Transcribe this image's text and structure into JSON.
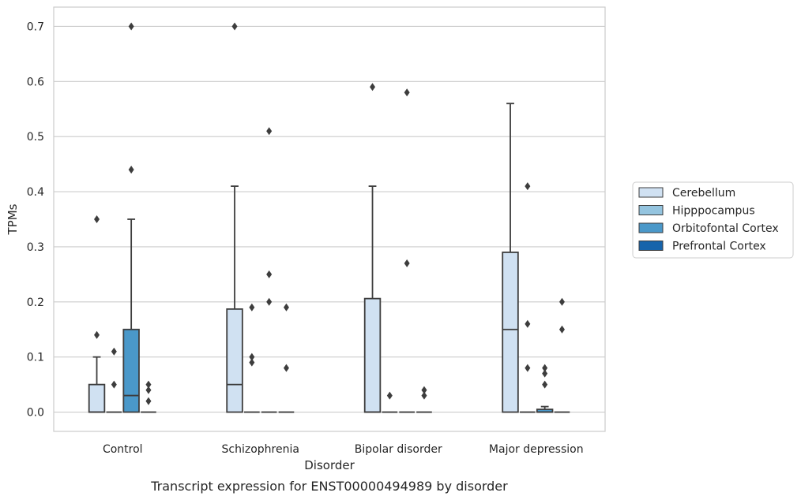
{
  "chart_data": {
    "type": "box",
    "caption": "Transcript expression for ENST00000494989 by disorder",
    "xlabel": "Disorder",
    "ylabel": "TPMs",
    "ylim": [
      -0.035,
      0.735
    ],
    "yticks": [
      0.0,
      0.1,
      0.2,
      0.3,
      0.4,
      0.5,
      0.6,
      0.7
    ],
    "ytick_labels": [
      "0.0",
      "0.1",
      "0.2",
      "0.3",
      "0.4",
      "0.5",
      "0.6",
      "0.7"
    ],
    "grid": "horizontal",
    "legend_position": "right",
    "categories": [
      "Control",
      "Schizophrenia",
      "Bipolar disorder",
      "Major depression"
    ],
    "series": [
      {
        "name": "Cerebellum",
        "color": "#d0e1f2",
        "boxes": [
          {
            "q1": 0.0,
            "median": 0.0,
            "q3": 0.05,
            "whisker_low": 0.0,
            "whisker_high": 0.1,
            "outliers": [
              0.35,
              0.14
            ]
          },
          {
            "q1": 0.0,
            "median": 0.05,
            "q3": 0.187,
            "whisker_low": 0.0,
            "whisker_high": 0.41,
            "outliers": [
              0.7
            ]
          },
          {
            "q1": 0.0,
            "median": 0.0,
            "q3": 0.206,
            "whisker_low": 0.0,
            "whisker_high": 0.41,
            "outliers": [
              0.59
            ]
          },
          {
            "q1": 0.0,
            "median": 0.15,
            "q3": 0.29,
            "whisker_low": 0.0,
            "whisker_high": 0.56,
            "outliers": []
          }
        ]
      },
      {
        "name": "Hipppocampus",
        "color": "#94c4df",
        "boxes": [
          {
            "q1": 0.0,
            "median": 0.0,
            "q3": 0.0,
            "whisker_low": 0.0,
            "whisker_high": 0.0,
            "outliers": [
              0.11,
              0.05
            ]
          },
          {
            "q1": 0.0,
            "median": 0.0,
            "q3": 0.0,
            "whisker_low": 0.0,
            "whisker_high": 0.0,
            "outliers": [
              0.19,
              0.1,
              0.09
            ]
          },
          {
            "q1": 0.0,
            "median": 0.0,
            "q3": 0.0,
            "whisker_low": 0.0,
            "whisker_high": 0.0,
            "outliers": [
              0.03
            ]
          },
          {
            "q1": 0.0,
            "median": 0.0,
            "q3": 0.0,
            "whisker_low": 0.0,
            "whisker_high": 0.0,
            "outliers": [
              0.41,
              0.16,
              0.08
            ]
          }
        ]
      },
      {
        "name": "Orbitofontal Cortex",
        "color": "#4a98c9",
        "boxes": [
          {
            "q1": 0.0,
            "median": 0.03,
            "q3": 0.15,
            "whisker_low": 0.0,
            "whisker_high": 0.35,
            "outliers": [
              0.7,
              0.44
            ]
          },
          {
            "q1": 0.0,
            "median": 0.0,
            "q3": 0.0,
            "whisker_low": 0.0,
            "whisker_high": 0.0,
            "outliers": [
              0.51,
              0.25,
              0.2
            ]
          },
          {
            "q1": 0.0,
            "median": 0.0,
            "q3": 0.0,
            "whisker_low": 0.0,
            "whisker_high": 0.0,
            "outliers": [
              0.58,
              0.27
            ]
          },
          {
            "q1": 0.0,
            "median": 0.0,
            "q3": 0.005,
            "whisker_low": 0.0,
            "whisker_high": 0.01,
            "outliers": [
              0.08,
              0.07,
              0.05
            ]
          }
        ]
      },
      {
        "name": "Prefrontal Cortex",
        "color": "#1764ab",
        "boxes": [
          {
            "q1": 0.0,
            "median": 0.0,
            "q3": 0.0,
            "whisker_low": 0.0,
            "whisker_high": 0.0,
            "outliers": [
              0.05,
              0.04,
              0.02
            ]
          },
          {
            "q1": 0.0,
            "median": 0.0,
            "q3": 0.0,
            "whisker_low": 0.0,
            "whisker_high": 0.0,
            "outliers": [
              0.19,
              0.08
            ]
          },
          {
            "q1": 0.0,
            "median": 0.0,
            "q3": 0.0,
            "whisker_low": 0.0,
            "whisker_high": 0.0,
            "outliers": [
              0.04,
              0.03
            ]
          },
          {
            "q1": 0.0,
            "median": 0.0,
            "q3": 0.0,
            "whisker_low": 0.0,
            "whisker_high": 0.0,
            "outliers": [
              0.2,
              0.15
            ]
          }
        ]
      }
    ]
  }
}
